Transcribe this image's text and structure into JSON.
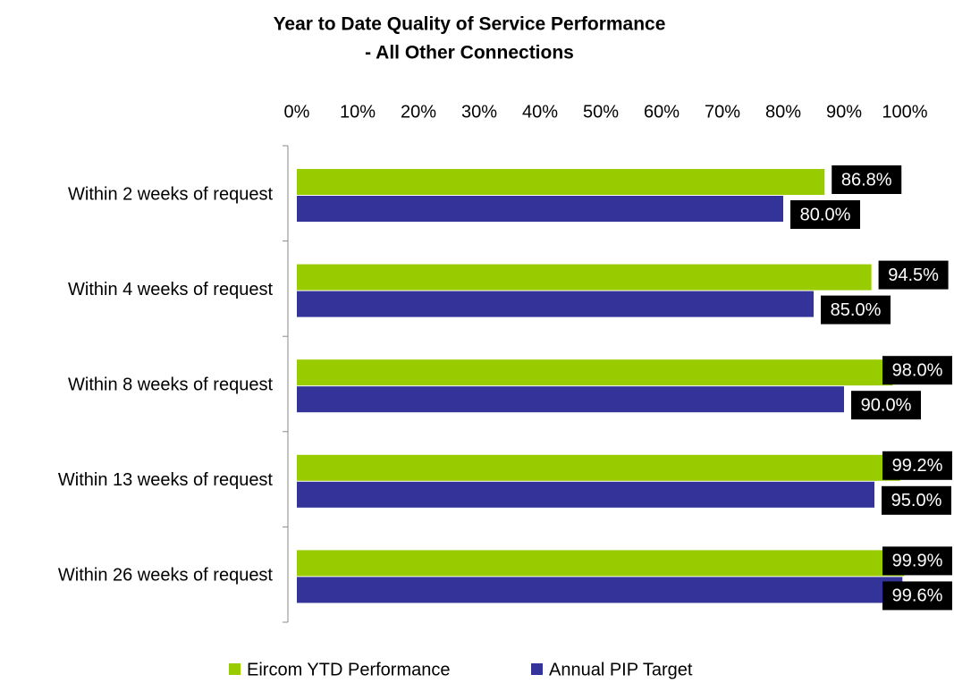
{
  "chart_data": {
    "type": "hbar",
    "title": "Year to Date Quality of Service Performance",
    "subtitle": "- All Other Connections",
    "categories": [
      "Within 2 weeks of request",
      "Within 4 weeks of request",
      "Within 8 weeks of request",
      "Within 13 weeks of request",
      "Within 26 weeks of request"
    ],
    "series": [
      {
        "name": "Eircom YTD Performance",
        "color": "#99cc00",
        "values": [
          86.8,
          94.5,
          98.0,
          99.2,
          99.9
        ],
        "value_labels": [
          "86.8%",
          "94.5%",
          "98.0%",
          "99.2%",
          "99.9%"
        ]
      },
      {
        "name": "Annual PIP Target",
        "color": "#333399",
        "values": [
          80.0,
          85.0,
          90.0,
          95.0,
          99.6
        ],
        "value_labels": [
          "80.0%",
          "85.0%",
          "90.0%",
          "95.0%",
          "99.6%"
        ]
      }
    ],
    "xlim": [
      0,
      100
    ],
    "xticks": [
      {
        "value": 0,
        "label": "0%"
      },
      {
        "value": 10,
        "label": "10%"
      },
      {
        "value": 20,
        "label": "20%"
      },
      {
        "value": 30,
        "label": "30%"
      },
      {
        "value": 40,
        "label": "40%"
      },
      {
        "value": 50,
        "label": "50%"
      },
      {
        "value": 60,
        "label": "60%"
      },
      {
        "value": 70,
        "label": "70%"
      },
      {
        "value": 80,
        "label": "80%"
      },
      {
        "value": 90,
        "label": "90%"
      },
      {
        "value": 100,
        "label": "100%"
      }
    ],
    "legend": "bottom"
  }
}
